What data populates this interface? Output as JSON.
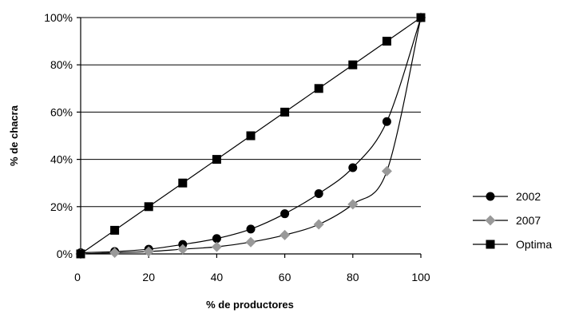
{
  "chart_data": {
    "type": "line",
    "title": "",
    "xlabel": "% de productores",
    "ylabel": "% de chacra",
    "xlim": [
      0,
      100
    ],
    "ylim": [
      0,
      100
    ],
    "x_ticks": [
      "0",
      "20",
      "40",
      "60",
      "80",
      "100"
    ],
    "y_ticks": [
      "0%",
      "20%",
      "40%",
      "60%",
      "80%",
      "100%"
    ],
    "grid": "horizontal",
    "legend_position": "right",
    "series": [
      {
        "name": "2002",
        "marker": "circle",
        "color": "#000000",
        "x": [
          0,
          10,
          20,
          30,
          40,
          50,
          60,
          70,
          80,
          90,
          100
        ],
        "y": [
          0.5,
          1,
          2,
          4,
          6.5,
          10.5,
          17,
          25.5,
          36.5,
          56,
          100
        ]
      },
      {
        "name": "2007",
        "marker": "diamond",
        "color": "#999999",
        "x": [
          0,
          10,
          20,
          30,
          40,
          50,
          60,
          70,
          80,
          90,
          100
        ],
        "y": [
          0,
          0.5,
          1,
          2,
          3,
          5,
          8,
          12.5,
          21,
          35,
          100
        ]
      },
      {
        "name": "Optima",
        "marker": "square",
        "color": "#000000",
        "x": [
          0,
          10,
          20,
          30,
          40,
          50,
          60,
          70,
          80,
          90,
          100
        ],
        "y": [
          0,
          10,
          20,
          30,
          40,
          50,
          60,
          70,
          80,
          90,
          100
        ]
      }
    ]
  }
}
